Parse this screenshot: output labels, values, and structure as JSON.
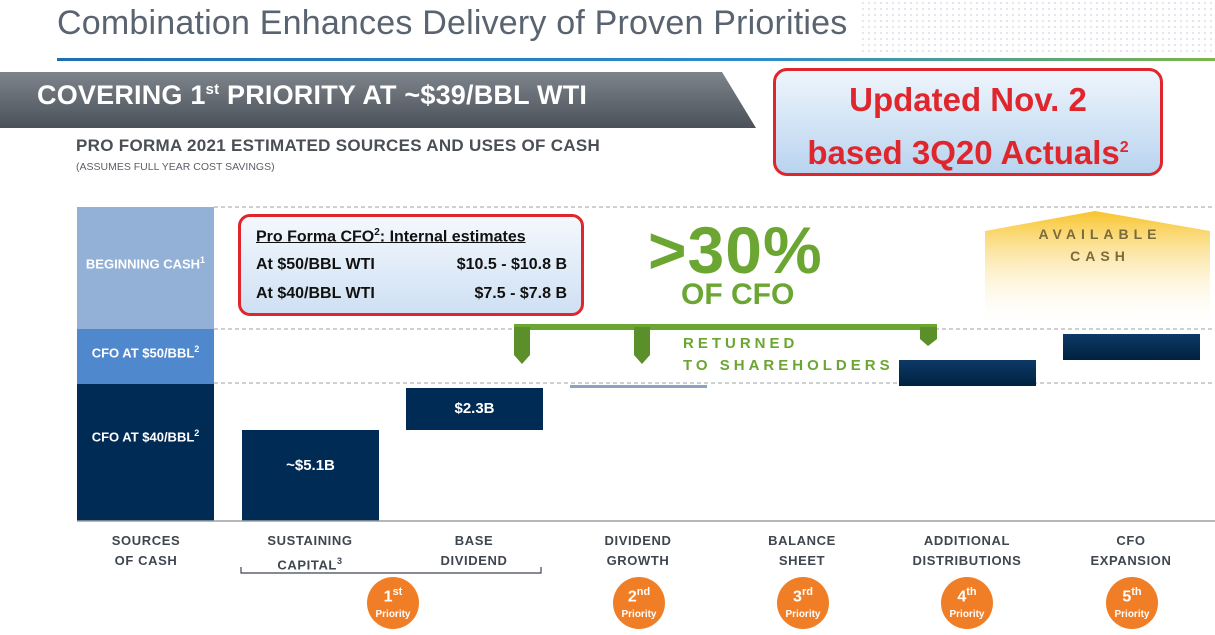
{
  "header": {
    "title": "Combination Enhances Delivery of Proven Priorities",
    "banner": "COVERING 1st PRIORITY AT ~$39/BBL WTI",
    "banner_main": "COVERING 1",
    "banner_sup": "st",
    "banner_rest": " PRIORITY AT ~$39/BBL WTI",
    "subtitle": "PRO FORMA 2021 ESTIMATED SOURCES AND USES OF CASH",
    "subnote": "(ASSUMES FULL YEAR COST SAVINGS)"
  },
  "update_box": {
    "line1": "Updated Nov. 2",
    "line2": "based 3Q20 Actuals",
    "footnote": "2"
  },
  "cfo_box": {
    "header_left": "Pro Forma CFO",
    "header_sup": "2",
    "header_right": ":  Internal estimates",
    "rows": [
      {
        "label": "At $50/BBL WTI",
        "value": "$10.5 - $10.8 B"
      },
      {
        "label": "At $40/BBL WTI",
        "value": "$7.5 - $7.8 B"
      }
    ]
  },
  "callout": {
    "percent": ">30%",
    "of_cfo": "OF CFO",
    "returned_line1": "RETURNED",
    "returned_line2": "TO SHAREHOLDERS"
  },
  "available_cash": {
    "line1": "AVAILABLE",
    "line2": "CASH"
  },
  "colors": {
    "navy": "#002b55",
    "mid_blue": "#4f88cc",
    "light_blue": "#93b1d6",
    "green": "#6aa631",
    "orange": "#f07e26",
    "red": "#e0262d",
    "gold": "#f8c42c"
  },
  "chart_data": {
    "type": "bar",
    "subtype": "waterfall",
    "categories": [
      "SOURCES OF CASH",
      "SUSTAINING CAPITAL",
      "BASE DIVIDEND",
      "DIVIDEND GROWTH",
      "BALANCE SHEET",
      "ADDITIONAL DISTRIBUTIONS",
      "CFO EXPANSION"
    ],
    "source_segments": [
      {
        "label": "CFO AT $40/BBL",
        "sup": "2"
      },
      {
        "label": "CFO AT $50/BBL",
        "sup": "2"
      },
      {
        "label": "BEGINNING CASH",
        "sup": "1"
      }
    ],
    "bars": [
      {
        "category": "SUSTAINING CAPITAL",
        "label": "~$5.1B"
      },
      {
        "category": "BASE DIVIDEND",
        "label": "$2.3B"
      }
    ],
    "priorities": [
      {
        "num": "1",
        "sup": "st",
        "label": "Priority",
        "spans": [
          "SUSTAINING CAPITAL",
          "BASE DIVIDEND"
        ]
      },
      {
        "num": "2",
        "sup": "nd",
        "label": "Priority",
        "spans": [
          "DIVIDEND GROWTH"
        ]
      },
      {
        "num": "3",
        "sup": "rd",
        "label": "Priority",
        "spans": [
          "BALANCE SHEET"
        ]
      },
      {
        "num": "4",
        "sup": "th",
        "label": "Priority",
        "spans": [
          "ADDITIONAL DISTRIBUTIONS"
        ]
      },
      {
        "num": "5",
        "sup": "th",
        "label": "Priority",
        "spans": [
          "CFO EXPANSION"
        ]
      }
    ],
    "grid": false,
    "legend": "none"
  },
  "categories_display": [
    {
      "l1": "SOURCES",
      "l2": "OF CASH",
      "sup": ""
    },
    {
      "l1": "SUSTAINING",
      "l2": "CAPITAL",
      "sup": "3"
    },
    {
      "l1": "BASE",
      "l2": "DIVIDEND",
      "sup": ""
    },
    {
      "l1": "DIVIDEND",
      "l2": "GROWTH",
      "sup": ""
    },
    {
      "l1": "BALANCE",
      "l2": "SHEET",
      "sup": ""
    },
    {
      "l1": "ADDITIONAL",
      "l2": "DISTRIBUTIONS",
      "sup": ""
    },
    {
      "l1": "CFO",
      "l2": "EXPANSION",
      "sup": ""
    }
  ]
}
